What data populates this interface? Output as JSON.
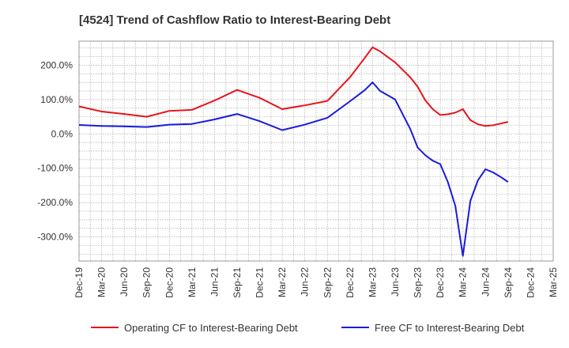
{
  "chart_data": {
    "type": "line",
    "title": "[4524]  Trend of Cashflow Ratio to Interest-Bearing Debt",
    "xlabel": "",
    "ylabel": "",
    "x_ticks": [
      "Dec-19",
      "Mar-20",
      "Jun-20",
      "Sep-20",
      "Dec-20",
      "Mar-21",
      "Jun-21",
      "Sep-21",
      "Dec-21",
      "Mar-22",
      "Jun-22",
      "Sep-22",
      "Dec-22",
      "Mar-23",
      "Jun-23",
      "Sep-23",
      "Dec-23",
      "Mar-24",
      "Jun-24",
      "Sep-24",
      "Dec-24",
      "Mar-25"
    ],
    "y_ticks": [
      {
        "value": 200,
        "label": "200.0%"
      },
      {
        "value": 100,
        "label": "100.0%"
      },
      {
        "value": 0,
        "label": "0.0%"
      },
      {
        "value": -100,
        "label": "-100.0%"
      },
      {
        "value": -200,
        "label": "-200.0%"
      },
      {
        "value": -300,
        "label": "-300.0%"
      }
    ],
    "ylim": [
      -370,
      270
    ],
    "grid": true,
    "legend_position": "bottom",
    "series": [
      {
        "name": "Operating CF to Interest-Bearing Debt",
        "color": "#e8141b",
        "points": [
          [
            "Dec-19",
            80
          ],
          [
            "Mar-20",
            65
          ],
          [
            "Jun-20",
            58
          ],
          [
            "Sep-20",
            50
          ],
          [
            "Dec-20",
            67
          ],
          [
            "Mar-21",
            70
          ],
          [
            "Jun-21",
            97
          ],
          [
            "Sep-21",
            128
          ],
          [
            "Dec-21",
            105
          ],
          [
            "Mar-22",
            72
          ],
          [
            "Jun-22",
            83
          ],
          [
            "Sep-22",
            96
          ],
          [
            "Dec-22",
            165
          ],
          [
            "Feb-23",
            222
          ],
          [
            "Mar-23",
            252
          ],
          [
            "Apr-23",
            240
          ],
          [
            "Jun-23",
            208
          ],
          [
            "Aug-23",
            165
          ],
          [
            "Sep-23",
            137
          ],
          [
            "Oct-23",
            98
          ],
          [
            "Nov-23",
            72
          ],
          [
            "Dec-23",
            55
          ],
          [
            "Jan-24",
            57
          ],
          [
            "Feb-24",
            62
          ],
          [
            "Mar-24",
            72
          ],
          [
            "Apr-24",
            40
          ],
          [
            "May-24",
            28
          ],
          [
            "Jun-24",
            23
          ],
          [
            "Jul-24",
            25
          ],
          [
            "Aug-24",
            30
          ],
          [
            "Sep-24",
            35
          ]
        ]
      },
      {
        "name": "Free CF to Interest-Bearing Debt",
        "color": "#1a1adf",
        "points": [
          [
            "Dec-19",
            26
          ],
          [
            "Mar-20",
            23
          ],
          [
            "Jun-20",
            22
          ],
          [
            "Sep-20",
            20
          ],
          [
            "Dec-20",
            27
          ],
          [
            "Mar-21",
            29
          ],
          [
            "Jun-21",
            42
          ],
          [
            "Sep-21",
            58
          ],
          [
            "Dec-21",
            37
          ],
          [
            "Mar-22",
            11
          ],
          [
            "Jun-22",
            27
          ],
          [
            "Sep-22",
            47
          ],
          [
            "Dec-22",
            95
          ],
          [
            "Feb-23",
            128
          ],
          [
            "Mar-23",
            150
          ],
          [
            "Apr-23",
            125
          ],
          [
            "Jun-23",
            100
          ],
          [
            "Aug-23",
            15
          ],
          [
            "Sep-23",
            -40
          ],
          [
            "Oct-23",
            -62
          ],
          [
            "Nov-23",
            -78
          ],
          [
            "Dec-23",
            -88
          ],
          [
            "Jan-24",
            -140
          ],
          [
            "Feb-24",
            -210
          ],
          [
            "Mar-24",
            -355
          ],
          [
            "Apr-24",
            -195
          ],
          [
            "May-24",
            -135
          ],
          [
            "Jun-24",
            -103
          ],
          [
            "Jul-24",
            -112
          ],
          [
            "Aug-24",
            -125
          ],
          [
            "Sep-24",
            -140
          ]
        ]
      }
    ]
  }
}
